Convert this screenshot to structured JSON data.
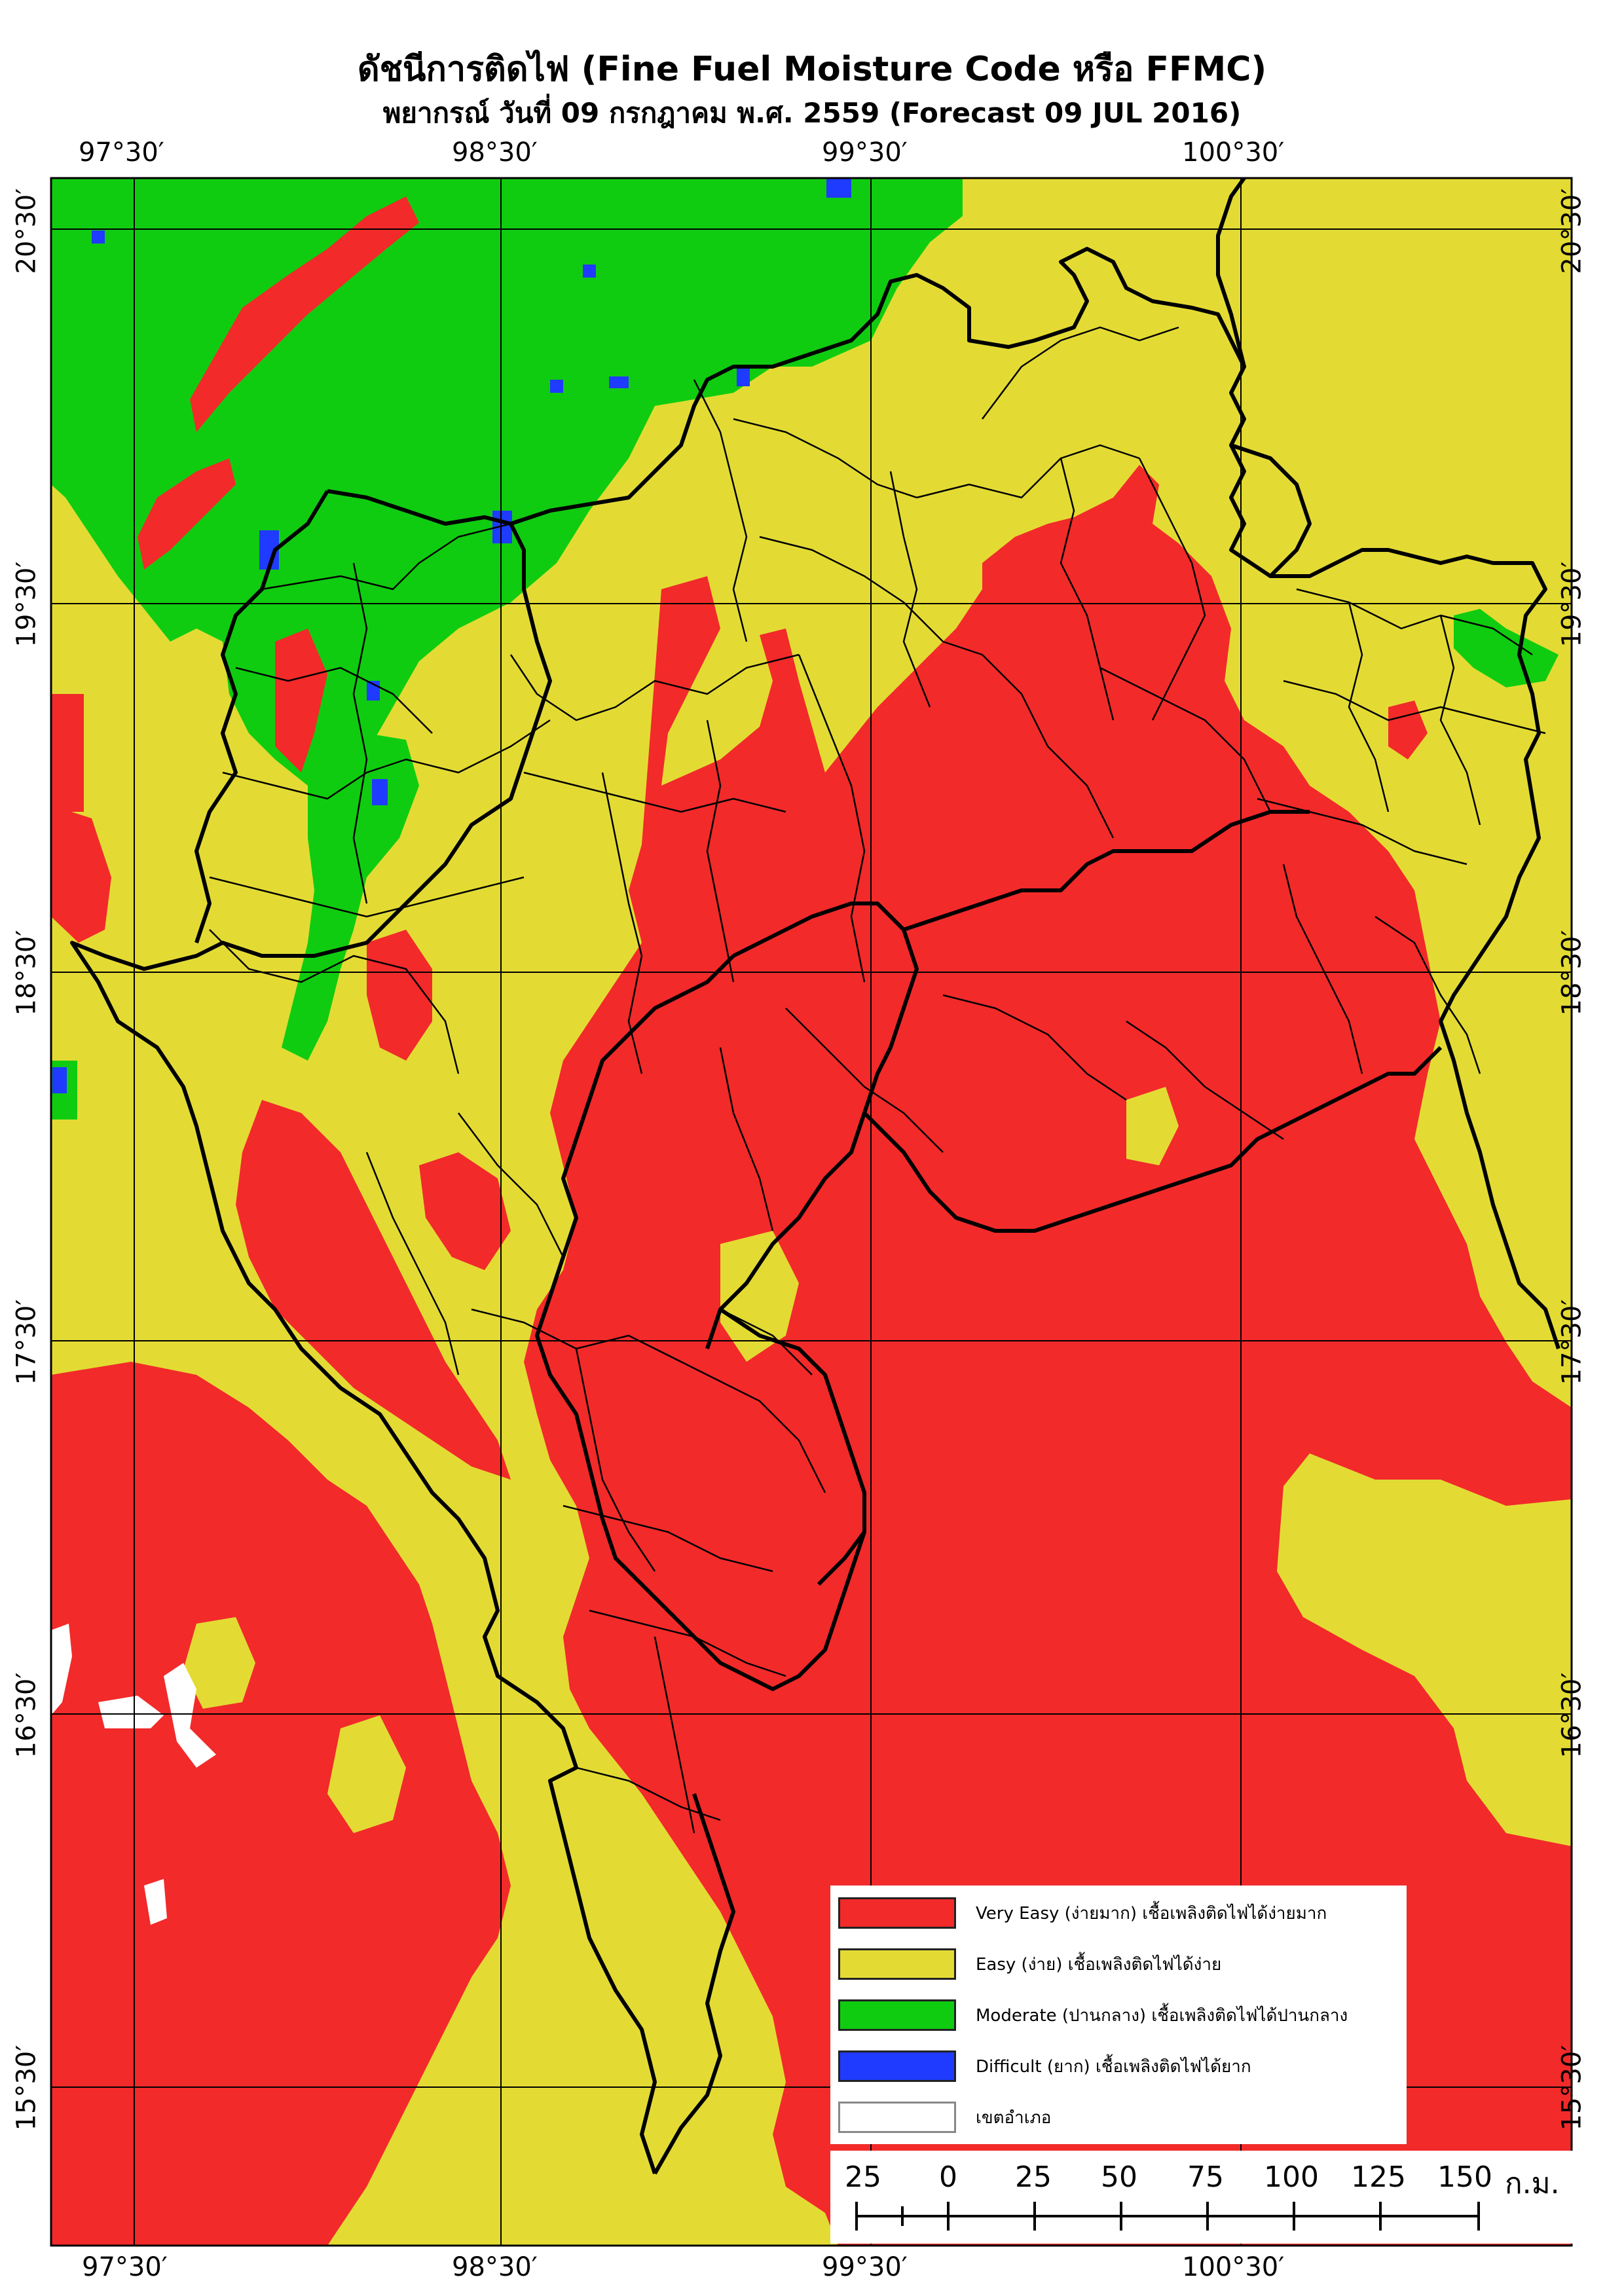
{
  "title": {
    "line1": "ดัชนีการติดไฟ (Fine Fuel Moisture Code หรือ FFMC)",
    "line2": "พยากรณ์ วันที่ 09 กรกฎาคม พ.ศ. 2559 (Forecast 09 JUL 2016)"
  },
  "longitude_labels": [
    "97°30′",
    "98°30′",
    "99°30′",
    "100°30′"
  ],
  "latitude_labels": [
    "20°30′",
    "19°30′",
    "18°30′",
    "17°30′",
    "16°30′",
    "15°30′"
  ],
  "colors": {
    "very_easy": "#F22A2A",
    "easy": "#E3DB34",
    "moderate": "#10CC10",
    "difficult": "#1F3BFF",
    "boundary": "#000000"
  },
  "legend": [
    {
      "key": "very_easy",
      "label": "Very Easy (ง่ายมาก) เชื้อเพลิงติดไฟได้ง่ายมาก",
      "color": "#F22A2A"
    },
    {
      "key": "easy",
      "label": "Easy (ง่าย) เชื้อเพลิงติดไฟได้ง่าย",
      "color": "#E3DB34"
    },
    {
      "key": "moderate",
      "label": "Moderate (ปานกลาง) เชื้อเพลิงติดไฟได้ปานกลาง",
      "color": "#10CC10"
    },
    {
      "key": "difficult",
      "label": "Difficult (ยาก) เชื้อเพลิงติดไฟได้ยาก",
      "color": "#1F3BFF"
    },
    {
      "key": "district",
      "label": "เขตอำเภอ",
      "color": "#FFFFFF"
    }
  ],
  "scale_bar": {
    "ticks": [
      "25",
      "0",
      "25",
      "50",
      "75",
      "100",
      "125",
      "150"
    ],
    "unit": "ก.ม."
  }
}
